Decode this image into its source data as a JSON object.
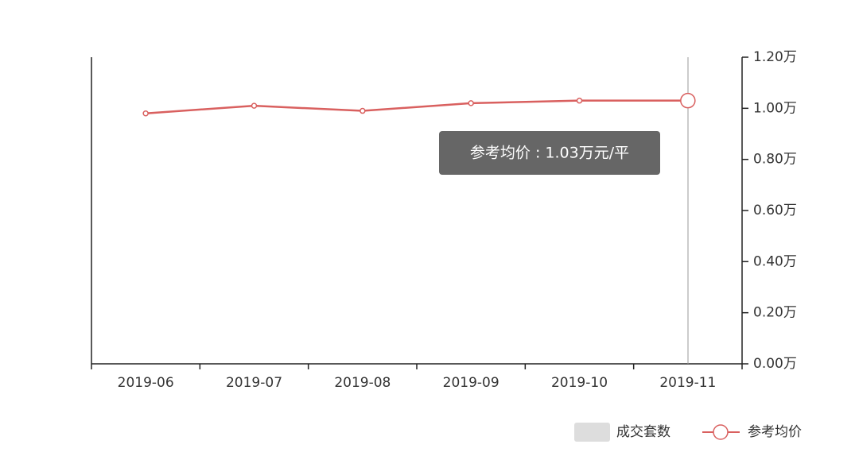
{
  "chart_data": {
    "type": "line",
    "categories": [
      "2019-06",
      "2019-07",
      "2019-08",
      "2019-09",
      "2019-10",
      "2019-11"
    ],
    "series": [
      {
        "name": "成交套数",
        "color": "#dddddd",
        "values": [
          null,
          null,
          null,
          null,
          null,
          null
        ]
      },
      {
        "name": "参考均价",
        "color": "#d9605f",
        "axis": "y2",
        "values": [
          0.98,
          1.01,
          0.99,
          1.02,
          1.03,
          1.03
        ]
      }
    ],
    "y2lim": [
      0,
      1.2
    ],
    "y2ticks": [
      {
        "value": 0,
        "label": "0.00万"
      },
      {
        "value": 0.2,
        "label": "0.20万"
      },
      {
        "value": 0.4,
        "label": "0.40万"
      },
      {
        "value": 0.6,
        "label": "0.60万"
      },
      {
        "value": 0.8,
        "label": "0.80万"
      },
      {
        "value": 1.0,
        "label": "1.00万"
      },
      {
        "value": 1.2,
        "label": "1.20万"
      }
    ],
    "tooltip": "参考均价 : 1.03万元/平"
  }
}
